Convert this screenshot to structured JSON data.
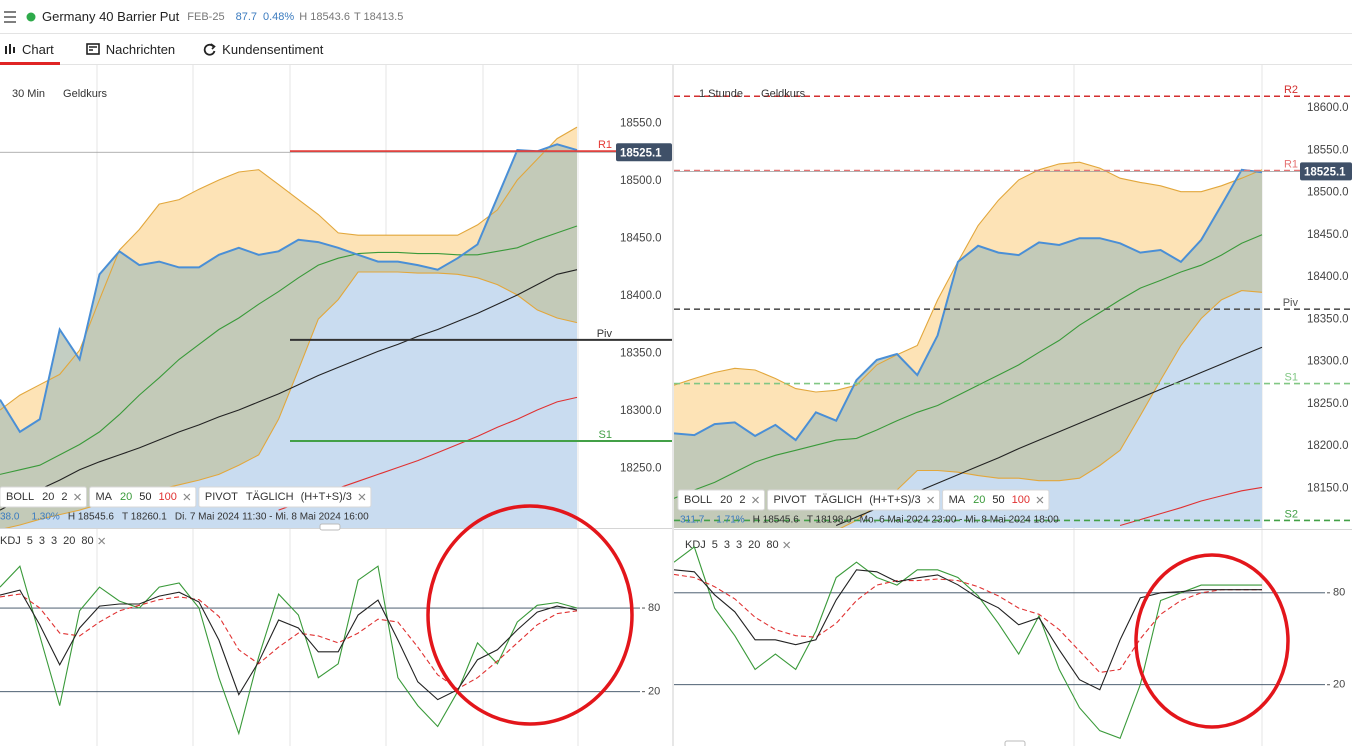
{
  "header": {
    "title": "Germany 40 Barrier Put",
    "expiry": "FEB-25",
    "price": "87.7",
    "change": "0.48%",
    "high": "H 18543.6",
    "low": "T 18413.5"
  },
  "tabs": [
    "Chart",
    "Nachrichten",
    "Kundensentiment"
  ],
  "panels": [
    {
      "interval": "30 Min",
      "quote": "Geldkurs",
      "ylim": [
        18201,
        18601
      ],
      "yticks": [
        {
          "value": 18250,
          "label": "18250.0"
        },
        {
          "value": 18300,
          "label": "18300.0"
        },
        {
          "value": 18350,
          "label": "18350.0"
        },
        {
          "value": 18400,
          "label": "18400.0"
        },
        {
          "value": 18450,
          "label": "18450.0"
        },
        {
          "value": 18500,
          "label": "18500.0"
        },
        {
          "value": 18550,
          "label": "18550.0"
        }
      ],
      "last": {
        "value": 18525.1,
        "label": "18525.1"
      },
      "level_style": "solid",
      "levels": [
        {
          "name": "R1",
          "value": 18526,
          "color": "#e53935"
        },
        {
          "name": "Piv",
          "value": 18362,
          "color": "#333333"
        },
        {
          "name": "S1",
          "value": 18274,
          "color": "#43a047"
        }
      ],
      "lines": {
        "boll_upper": {
          "color": "#e2a73c",
          "values": [
            18301,
            18314,
            18323,
            18332,
            18353,
            18397,
            18440,
            18458,
            18480,
            18484,
            18493,
            18501,
            18508,
            18510,
            18497,
            18484,
            18471,
            18455,
            18453,
            18453,
            18453,
            18453,
            18453,
            18453,
            18462,
            18475,
            18501,
            18519,
            18537,
            18547
          ]
        },
        "boll_lower": {
          "color": "#e2a73c",
          "values": [
            18197,
            18201,
            18206,
            18210,
            18214,
            18219,
            18223,
            18227,
            18232,
            18236,
            18240,
            18245,
            18253,
            18262,
            18293,
            18336,
            18380,
            18397,
            18421,
            18421,
            18421,
            18420,
            18420,
            18419,
            18416,
            18410,
            18401,
            18388,
            18381,
            18377
          ]
        },
        "ma100": {
          "color": "#e03131",
          "values": [
            null,
            null,
            null,
            null,
            null,
            null,
            null,
            null,
            null,
            null,
            null,
            null,
            null,
            null,
            18214,
            18220,
            18227,
            18233,
            18239,
            18245,
            18251,
            18257,
            18264,
            18271,
            18278,
            18286,
            18293,
            18301,
            18308,
            18312
          ]
        },
        "ma50": {
          "color": "#222222",
          "values": [
            18214,
            18223,
            18232,
            18240,
            18249,
            18256,
            18262,
            18268,
            18275,
            18282,
            18288,
            18295,
            18301,
            18308,
            18315,
            18323,
            18331,
            18338,
            18345,
            18352,
            18358,
            18365,
            18371,
            18378,
            18385,
            18393,
            18401,
            18410,
            18419,
            18423
          ]
        },
        "ma20": {
          "color": "#3a9a3a",
          "values": [
            18245,
            18249,
            18253,
            18262,
            18271,
            18282,
            18297,
            18314,
            18329,
            18345,
            18358,
            18371,
            18381,
            18393,
            18404,
            18416,
            18427,
            18433,
            18437,
            18438,
            18438,
            18437,
            18437,
            18436,
            18436,
            18439,
            18442,
            18449,
            18455,
            18461
          ]
        },
        "price": {
          "color": "#4a8fd6",
          "values": [
            18310,
            18282,
            18293,
            18371,
            18345,
            18419,
            18439,
            18427,
            18430,
            18425,
            18425,
            18436,
            18442,
            18436,
            18439,
            18449,
            18447,
            18442,
            18436,
            18430,
            18430,
            18427,
            18423,
            18433,
            18445,
            18486,
            18527,
            18526,
            18532,
            18527
          ]
        }
      },
      "legend": [
        {
          "name": "BOLL",
          "params": [
            "20",
            "2"
          ]
        },
        {
          "name": "MA",
          "params": [
            "20",
            "50",
            "100"
          ]
        },
        {
          "name": "PIVOT",
          "params": [
            "TÄGLICH",
            "(H+T+S)/3"
          ]
        }
      ],
      "info": {
        "value": "38.0",
        "change": "1.30%",
        "high": "H 18545.6",
        "low": "T 18260.1",
        "range": "Di. 7 Mai 2024 11:30 - Mi. 8 Mai 2024 16:00"
      },
      "kdj": {
        "label": [
          "KDJ",
          "5",
          "3",
          "3",
          "20",
          "80"
        ],
        "ylim": [
          -19,
          136
        ],
        "yticks": [
          20,
          80
        ],
        "K": {
          "color": "#222222",
          "values": [
            89.3,
            92.9,
            67.9,
            39.3,
            65.7,
            81.4,
            82.9,
            82.9,
            88.6,
            91.4,
            84.3,
            57.1,
            17.9,
            41.4,
            71.4,
            65.7,
            48.6,
            48.6,
            75,
            85.7,
            57.1,
            27.1,
            14.3,
            21.4,
            42.9,
            50,
            64.3,
            77.1,
            81.4,
            78.6
          ]
        },
        "D": {
          "color": "#e03131",
          "dashed": true,
          "values": [
            88,
            90,
            80,
            62,
            60,
            70,
            78,
            82,
            86,
            88,
            86,
            74,
            50,
            40,
            52,
            62,
            60,
            55,
            62,
            72,
            70,
            52,
            32,
            22,
            30,
            42,
            55,
            68,
            76,
            78
          ]
        },
        "J": {
          "color": "#3a9a3a",
          "values": [
            95,
            110,
            60,
            10,
            78,
            95,
            85,
            80,
            95,
            98,
            80,
            30,
            -10,
            45,
            90,
            75,
            30,
            40,
            100,
            110,
            30,
            10,
            -5,
            20,
            55,
            40,
            70,
            82,
            84,
            80
          ]
        }
      }
    },
    {
      "interval": "1 Stunde",
      "quote": "Geldkurs",
      "ylim": [
        18103,
        18651
      ],
      "yticks": [
        {
          "value": 18150,
          "label": "18150.0"
        },
        {
          "value": 18200,
          "label": "18200.0"
        },
        {
          "value": 18250,
          "label": "18250.0"
        },
        {
          "value": 18300,
          "label": "18300.0"
        },
        {
          "value": 18350,
          "label": "18350.0"
        },
        {
          "value": 18400,
          "label": "18400.0"
        },
        {
          "value": 18450,
          "label": "18450.0"
        },
        {
          "value": 18500,
          "label": "18500.0"
        },
        {
          "value": 18550,
          "label": "18550.0"
        },
        {
          "value": 18600,
          "label": "18600.0"
        }
      ],
      "last": {
        "value": 18525.1,
        "label": "18525.1"
      },
      "level_style": "dashed",
      "levels": [
        {
          "name": "R2",
          "value": 18614,
          "color": "#d32f2f"
        },
        {
          "name": "R1",
          "value": 18526,
          "color": "#e57373"
        },
        {
          "name": "Piv",
          "value": 18362,
          "color": "#555555"
        },
        {
          "name": "S1",
          "value": 18274,
          "color": "#81c784"
        },
        {
          "name": "S2",
          "value": 18112,
          "color": "#43a047"
        }
      ],
      "lines": {
        "boll_upper": {
          "color": "#e2a73c",
          "values": [
            18272,
            18280,
            18287,
            18292,
            18290,
            18280,
            18268,
            18264,
            18266,
            18272,
            18296,
            18308,
            18319,
            18373,
            18418,
            18461,
            18491,
            18515,
            18527,
            18534,
            18536,
            18529,
            18517,
            18512,
            18508,
            18501,
            18501,
            18508,
            18517,
            18527
          ]
        },
        "boll_lower": {
          "color": "#e2a73c",
          "values": [
            18082,
            18082,
            18082,
            18082,
            18082,
            18088,
            18088,
            18094,
            18100,
            18112,
            18130,
            18148,
            18171,
            18171,
            18169,
            18165,
            18162,
            18162,
            18159,
            18159,
            18162,
            18177,
            18195,
            18236,
            18278,
            18319,
            18351,
            18373,
            18384,
            18382
          ]
        },
        "ma100": {
          "color": "#e03131",
          "values": [
            null,
            null,
            null,
            null,
            null,
            null,
            null,
            null,
            null,
            null,
            null,
            null,
            null,
            null,
            null,
            null,
            null,
            null,
            null,
            null,
            null,
            null,
            18106,
            18113,
            18120,
            18127,
            18135,
            18141,
            18147,
            18151
          ]
        },
        "ma50": {
          "color": "#222222",
          "values": [
            null,
            null,
            null,
            null,
            null,
            null,
            null,
            null,
            18106,
            18116,
            18126,
            18136,
            18146,
            18156,
            18166,
            18176,
            18186,
            18197,
            18207,
            18217,
            18227,
            18237,
            18247,
            18257,
            18267,
            18277,
            18287,
            18297,
            18307,
            18317
          ]
        },
        "ma20": {
          "color": "#3a9a3a",
          "values": [
            18138,
            18148,
            18157,
            18169,
            18181,
            18189,
            18195,
            18201,
            18207,
            18209,
            18219,
            18230,
            18240,
            18248,
            18260,
            18272,
            18284,
            18296,
            18311,
            18325,
            18343,
            18358,
            18373,
            18387,
            18396,
            18406,
            18414,
            18426,
            18440,
            18450
          ]
        },
        "price": {
          "color": "#4a8fd6",
          "values": [
            18215,
            18213,
            18226,
            18228,
            18212,
            18225,
            18207,
            18240,
            18230,
            18278,
            18302,
            18309,
            18284,
            18331,
            18418,
            18437,
            18429,
            18426,
            18441,
            18438,
            18446,
            18446,
            18440,
            18429,
            18432,
            18418,
            18444,
            18485,
            18527,
            18524
          ]
        }
      },
      "legend": [
        {
          "name": "BOLL",
          "params": [
            "20",
            "2"
          ]
        },
        {
          "name": "PIVOT",
          "params": [
            "TÄGLICH",
            "(H+T+S)/3"
          ]
        },
        {
          "name": "MA",
          "params": [
            "20",
            "50",
            "100"
          ]
        }
      ],
      "info": {
        "value": "311.7",
        "change": "1.71%",
        "high": "H 18545.6",
        "low": "T 18198.0",
        "range": "Mo. 6 Mai 2024 23:00 - Mi. 8 Mai 2024 18:00"
      },
      "kdj": {
        "label": [
          "KDJ",
          "5",
          "3",
          "3",
          "20",
          "80"
        ],
        "ylim": [
          -20,
          121
        ],
        "yticks": [
          20,
          80
        ],
        "K": {
          "color": "#222222",
          "values": [
            95,
            93.7,
            78.7,
            67.6,
            49.3,
            49.3,
            46.1,
            49.3,
            75.4,
            95,
            93.7,
            87.2,
            89.8,
            91.7,
            85.2,
            76.7,
            70.2,
            59.1,
            63.7,
            42.8,
            23.3,
            16.7,
            49.3,
            76.7,
            80,
            80.7,
            82,
            82,
            82,
            82
          ]
        },
        "D": {
          "color": "#e03131",
          "dashed": true,
          "values": [
            92,
            90,
            84,
            76,
            64,
            56,
            52,
            51,
            60,
            75,
            85,
            88,
            88,
            89,
            88,
            84,
            78,
            70,
            66,
            56,
            42,
            28,
            30,
            50,
            66,
            75,
            80,
            82,
            82,
            82
          ]
        },
        "J": {
          "color": "#3a9a3a",
          "values": [
            100,
            110,
            70,
            52,
            30,
            40,
            30,
            55,
            90,
            100,
            90,
            85,
            95,
            95,
            90,
            78,
            60,
            40,
            65,
            30,
            5,
            -10,
            -15,
            20,
            75,
            80,
            85,
            85,
            85,
            85
          ]
        }
      }
    }
  ]
}
